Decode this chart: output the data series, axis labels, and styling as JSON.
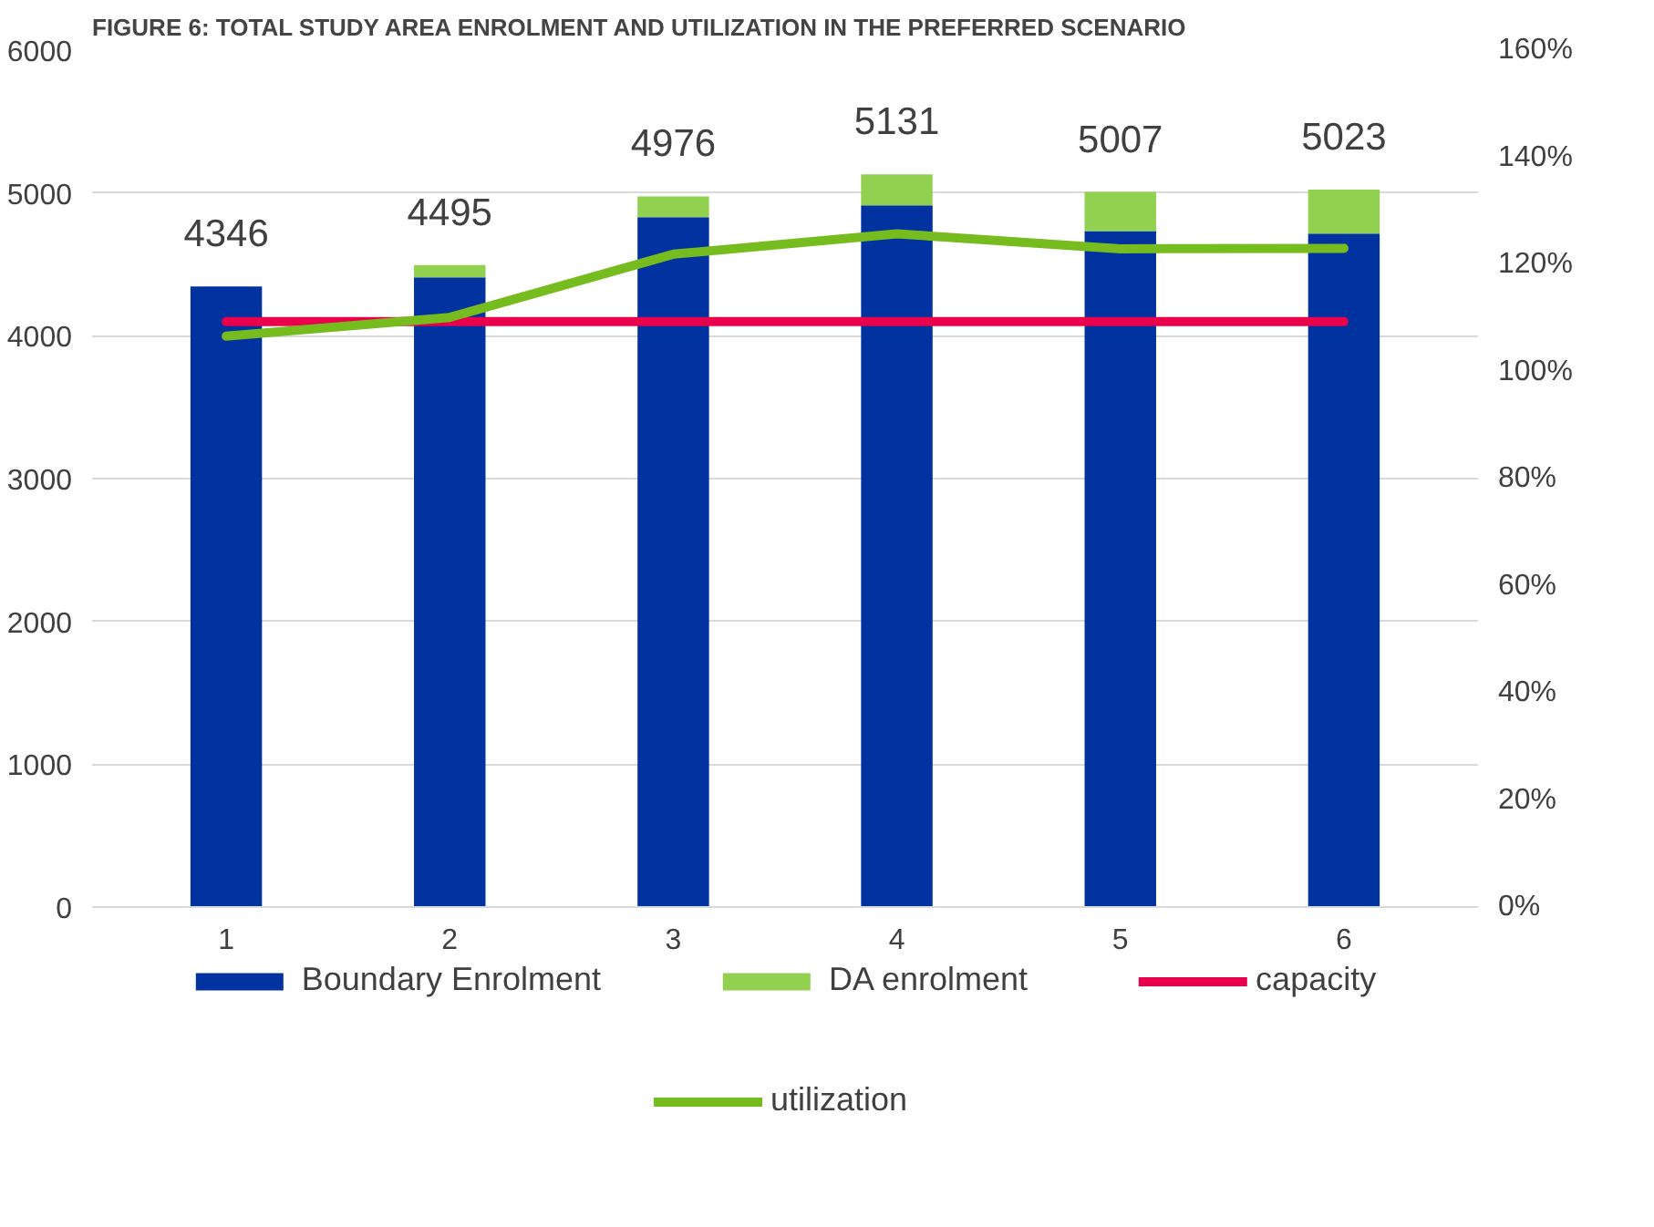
{
  "chart_data": {
    "type": "bar",
    "title": "FIGURE 6: TOTAL STUDY AREA ENROLMENT AND UTILIZATION IN THE PREFERRED SCENARIO",
    "categories": [
      "1",
      "2",
      "3",
      "4",
      "5",
      "6"
    ],
    "stacked": true,
    "series": [
      {
        "name": "Boundary Enrolment",
        "color": "#0033a0",
        "values": [
          4346,
          4409,
          4830,
          4913,
          4733,
          4716
        ]
      },
      {
        "name": "DA enrolment",
        "color": "#92d050",
        "values": [
          0,
          86,
          146,
          218,
          274,
          307
        ]
      },
      {
        "name": "capacity",
        "type": "line",
        "axis": "y2",
        "color": "#e8004c",
        "values": [
          109.3,
          109.3,
          109.3,
          109.3,
          109.3,
          109.3
        ]
      },
      {
        "name": "utilization",
        "type": "line",
        "axis": "y2",
        "color": "#77bc1f",
        "values": [
          106.6,
          110.1,
          121.9,
          125.7,
          122.9,
          123.0
        ]
      }
    ],
    "totals": [
      "4346",
      "4495",
      "4976",
      "5131",
      "5007",
      "5023"
    ],
    "ylim": [
      0,
      6000
    ],
    "yticks": [
      0,
      1000,
      2000,
      3000,
      4000,
      5000,
      6000
    ],
    "y2lim": [
      0,
      160
    ],
    "y2ticks": [
      {
        "value": 0,
        "label": "0%"
      },
      {
        "value": 20,
        "label": "20%"
      },
      {
        "value": 40,
        "label": "40%"
      },
      {
        "value": 60,
        "label": "60%"
      },
      {
        "value": 80,
        "label": "80%"
      },
      {
        "value": 100,
        "label": "100%"
      },
      {
        "value": 120,
        "label": "120%"
      },
      {
        "value": 140,
        "label": "140%"
      },
      {
        "value": 160,
        "label": "160%"
      }
    ],
    "grid": "y",
    "legend": "bottom"
  }
}
